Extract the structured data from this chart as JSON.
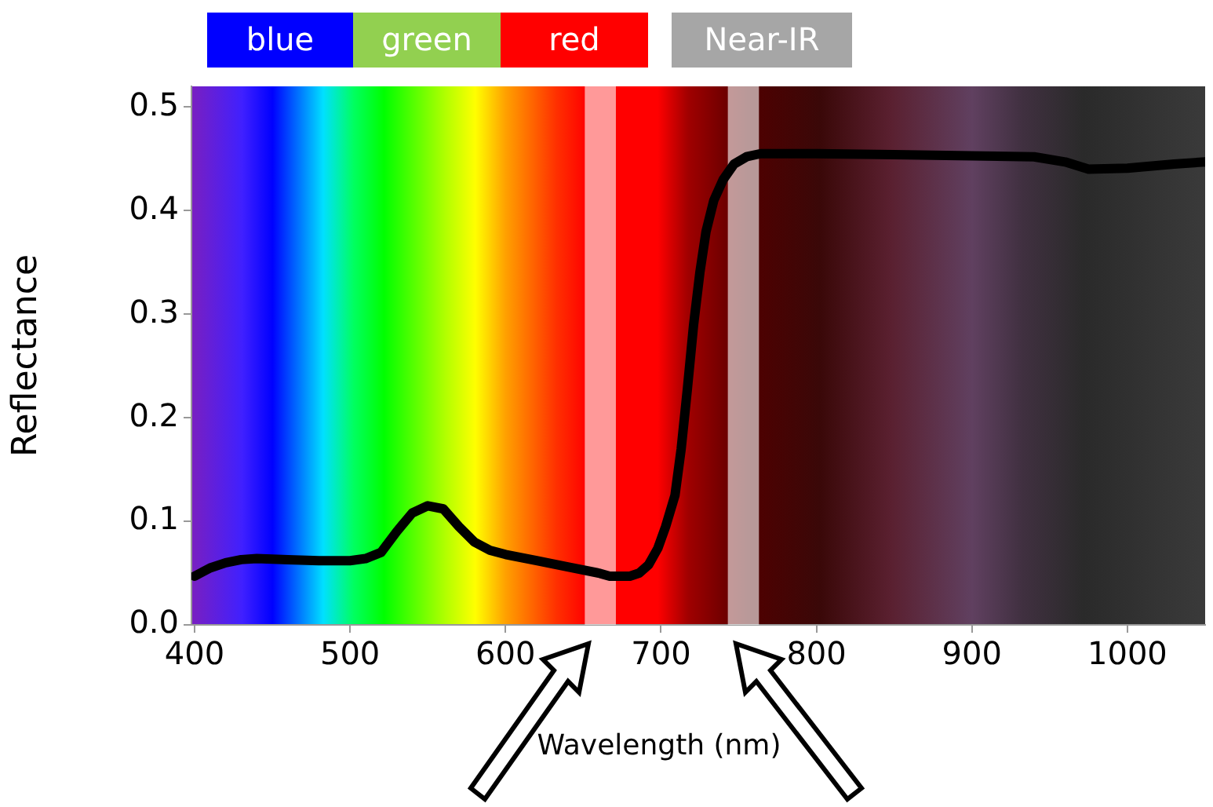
{
  "chart_data": {
    "type": "line",
    "xlabel": "Wavelength (nm)",
    "ylabel": "Reflectance",
    "annotations": [
      "blue",
      "green",
      "red",
      "Near-IR"
    ],
    "xlim": [
      398,
      1050
    ],
    "xticks": [
      400,
      500,
      600,
      700,
      800,
      900,
      1000
    ],
    "ylim": [
      0,
      0.52
    ],
    "yticks": [
      {
        "value": 0,
        "label": "0.0"
      },
      {
        "value": 0.1,
        "label": "0.1"
      },
      {
        "value": 0.2,
        "label": "0.2"
      },
      {
        "value": 0.3,
        "label": "0.3"
      },
      {
        "value": 0.4,
        "label": "0.4"
      },
      {
        "value": 0.5,
        "label": "0.5"
      }
    ],
    "grid": false,
    "legend": false,
    "marker": "none",
    "line_style": "solid",
    "series": [
      {
        "color": "#000000",
        "x": [
          400,
          410,
          420,
          430,
          440,
          460,
          480,
          500,
          510,
          520,
          530,
          540,
          550,
          560,
          570,
          580,
          590,
          600,
          620,
          640,
          660,
          667,
          680,
          686,
          692,
          698,
          703,
          709,
          713,
          717,
          721,
          725,
          729,
          734,
          740,
          747,
          755,
          764,
          800,
          850,
          900,
          940,
          960,
          975,
          1000,
          1030,
          1050
        ],
        "values": [
          0.047,
          0.055,
          0.06,
          0.063,
          0.064,
          0.063,
          0.062,
          0.062,
          0.064,
          0.07,
          0.09,
          0.108,
          0.115,
          0.112,
          0.095,
          0.08,
          0.072,
          0.068,
          0.062,
          0.056,
          0.05,
          0.047,
          0.047,
          0.05,
          0.058,
          0.074,
          0.095,
          0.125,
          0.17,
          0.228,
          0.29,
          0.34,
          0.38,
          0.41,
          0.43,
          0.445,
          0.452,
          0.455,
          0.455,
          0.454,
          0.453,
          0.452,
          0.447,
          0.44,
          0.441,
          0.445,
          0.447
        ]
      }
    ],
    "bands": [
      {
        "axis": "x",
        "from": 651,
        "to": 671,
        "color": "#ffffff"
      },
      {
        "axis": "x",
        "from": 743,
        "to": 763,
        "color": "#ffffff"
      }
    ]
  }
}
